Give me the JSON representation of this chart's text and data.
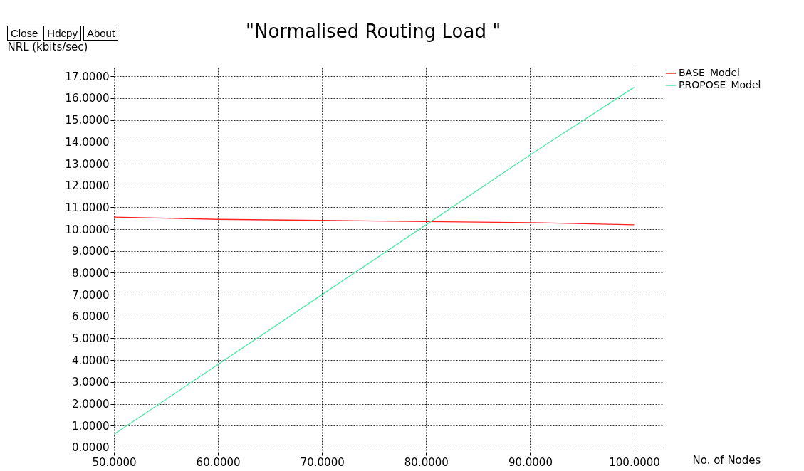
{
  "chart_data": {
    "type": "line",
    "title": "\"Normalised Routing Load \"",
    "xlabel": "No. of Nodes",
    "ylabel": "NRL (kbits/sec)",
    "annotations": [
      "Close",
      "Hdcpy",
      "About"
    ],
    "x": [
      50,
      60,
      70,
      80,
      90,
      100
    ],
    "series": [
      {
        "name": "BASE_Model",
        "color": "#ff2020",
        "values": [
          10.55,
          10.45,
          10.4,
          10.35,
          10.3,
          10.2
        ]
      },
      {
        "name": "PROPOSE_Model",
        "color": "#4ee8a8",
        "values": [
          0.6,
          3.8,
          7.0,
          10.2,
          13.4,
          16.5
        ]
      }
    ],
    "xlim": [
      50,
      102.7
    ],
    "ylim": [
      -0.2,
      17.4
    ],
    "xticks": [
      {
        "value": 50,
        "label": "50.0000"
      },
      {
        "value": 60,
        "label": "60.0000"
      },
      {
        "value": 70,
        "label": "70.0000"
      },
      {
        "value": 80,
        "label": "80.0000"
      },
      {
        "value": 90,
        "label": "90.0000"
      },
      {
        "value": 100,
        "label": "100.0000"
      }
    ],
    "yticks": [
      {
        "value": 0,
        "label": "0.0000"
      },
      {
        "value": 1,
        "label": "1.0000"
      },
      {
        "value": 2,
        "label": "2.0000"
      },
      {
        "value": 3,
        "label": "3.0000"
      },
      {
        "value": 4,
        "label": "4.0000"
      },
      {
        "value": 5,
        "label": "5.0000"
      },
      {
        "value": 6,
        "label": "6.0000"
      },
      {
        "value": 7,
        "label": "7.0000"
      },
      {
        "value": 8,
        "label": "8.0000"
      },
      {
        "value": 9,
        "label": "9.0000"
      },
      {
        "value": 10,
        "label": "10.0000"
      },
      {
        "value": 11,
        "label": "11.0000"
      },
      {
        "value": 12,
        "label": "12.0000"
      },
      {
        "value": 13,
        "label": "13.0000"
      },
      {
        "value": 14,
        "label": "14.0000"
      },
      {
        "value": 15,
        "label": "15.0000"
      },
      {
        "value": 16,
        "label": "16.0000"
      },
      {
        "value": 17,
        "label": "17.0000"
      }
    ],
    "grid": true,
    "legend": "top right",
    "marker": "none",
    "line_style": "solid"
  }
}
